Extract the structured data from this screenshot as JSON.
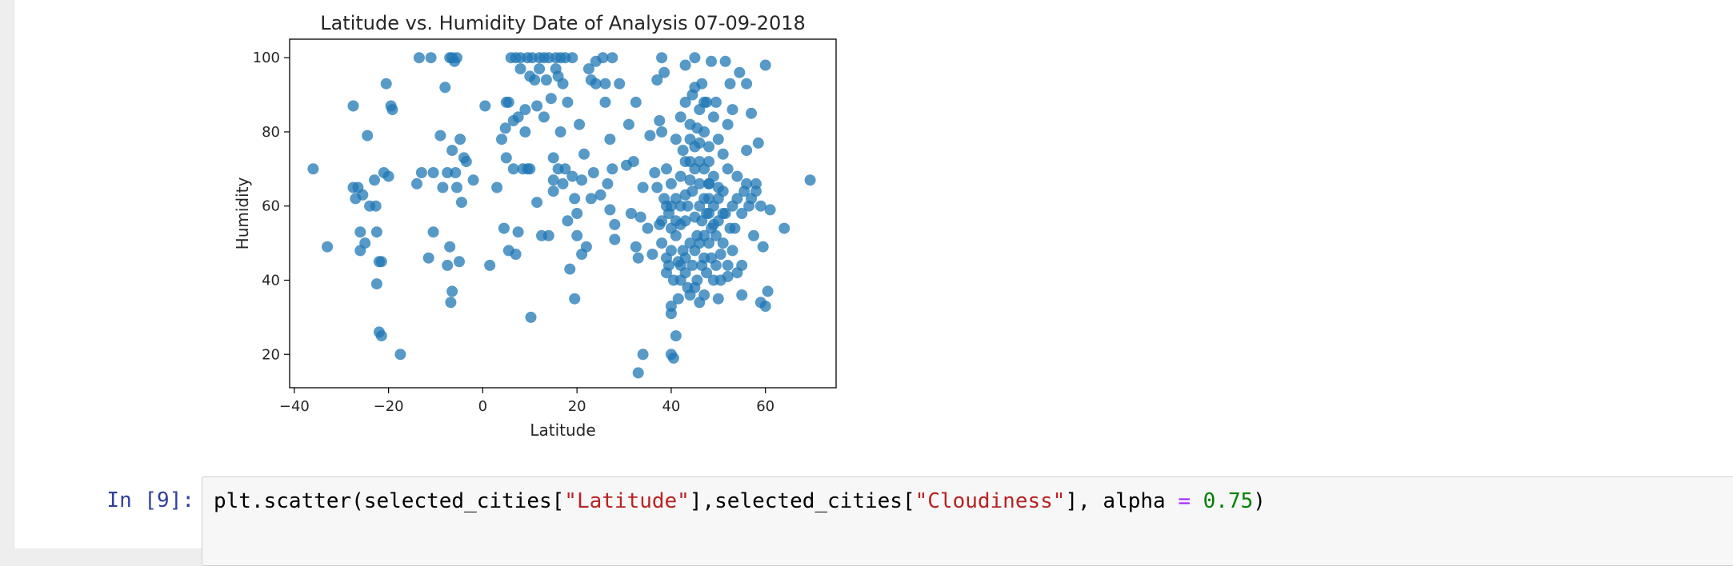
{
  "chart_data": {
    "type": "scatter",
    "title": "Latitude vs. Humidity Date of Analysis 07-09-2018",
    "xlabel": "Latitude",
    "ylabel": "Humidity",
    "xlim": [
      -41,
      75
    ],
    "ylim": [
      11,
      105
    ],
    "xticks": [
      -40,
      -20,
      0,
      20,
      40,
      60
    ],
    "yticks": [
      20,
      40,
      60,
      80,
      100
    ],
    "xtick_labels": [
      "−40",
      "−20",
      "0",
      "20",
      "40",
      "60"
    ],
    "ytick_labels": [
      "20",
      "40",
      "60",
      "80",
      "100"
    ],
    "grid": false,
    "marker_color": "#1f77b4",
    "alpha": 0.75,
    "points": [
      [
        -36,
        70
      ],
      [
        -33,
        49
      ],
      [
        -27.5,
        87
      ],
      [
        -27.5,
        65
      ],
      [
        -27,
        62
      ],
      [
        -26.5,
        65
      ],
      [
        -26,
        48
      ],
      [
        -26,
        53
      ],
      [
        -25.5,
        63
      ],
      [
        -25,
        50
      ],
      [
        -24.5,
        79
      ],
      [
        -24,
        60
      ],
      [
        -23,
        67
      ],
      [
        -22.7,
        60
      ],
      [
        -22.5,
        53
      ],
      [
        -22.5,
        39
      ],
      [
        -22,
        45
      ],
      [
        -22,
        26
      ],
      [
        -21.5,
        25
      ],
      [
        -21.5,
        45
      ],
      [
        -21,
        69
      ],
      [
        -20.5,
        93
      ],
      [
        -20,
        68
      ],
      [
        -19.5,
        87
      ],
      [
        -19.2,
        86
      ],
      [
        -17.5,
        20
      ],
      [
        -14,
        66
      ],
      [
        -13.5,
        100
      ],
      [
        -13,
        69
      ],
      [
        -11.5,
        46
      ],
      [
        -11,
        100
      ],
      [
        -10.5,
        53
      ],
      [
        -10.5,
        69
      ],
      [
        -9,
        79
      ],
      [
        -8.5,
        65
      ],
      [
        -8,
        92
      ],
      [
        -7.5,
        44
      ],
      [
        -7.5,
        69
      ],
      [
        -7,
        100
      ],
      [
        -7,
        49
      ],
      [
        -6.8,
        34
      ],
      [
        -6.5,
        100
      ],
      [
        -6.5,
        37
      ],
      [
        -6.5,
        75
      ],
      [
        -6,
        99
      ],
      [
        -5.8,
        69
      ],
      [
        -5.5,
        100
      ],
      [
        -5.5,
        65
      ],
      [
        -5,
        45
      ],
      [
        -4.8,
        78
      ],
      [
        -4.5,
        61
      ],
      [
        -4,
        73
      ],
      [
        -3.5,
        72
      ],
      [
        -2,
        67
      ],
      [
        0.5,
        87
      ],
      [
        1.5,
        44
      ],
      [
        3,
        65
      ],
      [
        4,
        78
      ],
      [
        4.5,
        54
      ],
      [
        4.8,
        81
      ],
      [
        5,
        73
      ],
      [
        5,
        88
      ],
      [
        5.5,
        48
      ],
      [
        5.5,
        88
      ],
      [
        6,
        100
      ],
      [
        6.5,
        83
      ],
      [
        6.5,
        70
      ],
      [
        7,
        100
      ],
      [
        7,
        47
      ],
      [
        7.5,
        84
      ],
      [
        7.5,
        53
      ],
      [
        8,
        97
      ],
      [
        8,
        100
      ],
      [
        8.5,
        70
      ],
      [
        9,
        80
      ],
      [
        9,
        86
      ],
      [
        9.5,
        100
      ],
      [
        9.5,
        70
      ],
      [
        10,
        95
      ],
      [
        10,
        70
      ],
      [
        10.2,
        30
      ],
      [
        10.5,
        100
      ],
      [
        11,
        94
      ],
      [
        11.5,
        61
      ],
      [
        11.5,
        87
      ],
      [
        12,
        100
      ],
      [
        12,
        97
      ],
      [
        12.5,
        52
      ],
      [
        13,
        100
      ],
      [
        13,
        84
      ],
      [
        13.5,
        94
      ],
      [
        14,
        52
      ],
      [
        14,
        100
      ],
      [
        14.5,
        89
      ],
      [
        15,
        73
      ],
      [
        15,
        67
      ],
      [
        15,
        64
      ],
      [
        15.5,
        97
      ],
      [
        15.5,
        100
      ],
      [
        16,
        95
      ],
      [
        16,
        70
      ],
      [
        16.5,
        100
      ],
      [
        16.5,
        80
      ],
      [
        17,
        93
      ],
      [
        17,
        66
      ],
      [
        17.5,
        100
      ],
      [
        17.5,
        70
      ],
      [
        18,
        88
      ],
      [
        18,
        56
      ],
      [
        18.5,
        43
      ],
      [
        19,
        100
      ],
      [
        19,
        68
      ],
      [
        19.5,
        62
      ],
      [
        19.5,
        35
      ],
      [
        20,
        52
      ],
      [
        20,
        58
      ],
      [
        20.5,
        82
      ],
      [
        21,
        67
      ],
      [
        21,
        47
      ],
      [
        21.5,
        74
      ],
      [
        22,
        49
      ],
      [
        22.5,
        97
      ],
      [
        23,
        94
      ],
      [
        23,
        62
      ],
      [
        23.5,
        69
      ],
      [
        24,
        99
      ],
      [
        24,
        93
      ],
      [
        25,
        63
      ],
      [
        25.5,
        100
      ],
      [
        26,
        93
      ],
      [
        26,
        88
      ],
      [
        26.5,
        66
      ],
      [
        27,
        78
      ],
      [
        27,
        59
      ],
      [
        27.5,
        100
      ],
      [
        27.5,
        70
      ],
      [
        28,
        55
      ],
      [
        28,
        51
      ],
      [
        29,
        93
      ],
      [
        30.5,
        71
      ],
      [
        31,
        82
      ],
      [
        31.5,
        58
      ],
      [
        32,
        72
      ],
      [
        32.5,
        88
      ],
      [
        32.5,
        49
      ],
      [
        33,
        46
      ],
      [
        33,
        15
      ],
      [
        33.5,
        57
      ],
      [
        34,
        20
      ],
      [
        34,
        65
      ],
      [
        35,
        54
      ],
      [
        35.5,
        79
      ],
      [
        36,
        47
      ],
      [
        36.5,
        69
      ],
      [
        37,
        94
      ],
      [
        37.5,
        83
      ],
      [
        38,
        100
      ],
      [
        38,
        80
      ],
      [
        38.5,
        96
      ],
      [
        39,
        46
      ],
      [
        39,
        60
      ],
      [
        39.5,
        44
      ],
      [
        40,
        33
      ],
      [
        40,
        31
      ],
      [
        40,
        20
      ],
      [
        40.5,
        19
      ],
      [
        41,
        25
      ],
      [
        41.5,
        35
      ],
      [
        42,
        55
      ],
      [
        42.5,
        75
      ],
      [
        43,
        98
      ],
      [
        43,
        63
      ],
      [
        43.5,
        38
      ],
      [
        44,
        67
      ],
      [
        44.5,
        90
      ],
      [
        44.5,
        44
      ],
      [
        45,
        100
      ],
      [
        45,
        57
      ],
      [
        45.5,
        81
      ],
      [
        46,
        77
      ],
      [
        46,
        34
      ],
      [
        46.5,
        93
      ],
      [
        47,
        62
      ],
      [
        47,
        46
      ],
      [
        47.5,
        88
      ],
      [
        48,
        72
      ],
      [
        48,
        50
      ],
      [
        48.5,
        99
      ],
      [
        49,
        55
      ],
      [
        49,
        40
      ],
      [
        49.5,
        88
      ],
      [
        50,
        65
      ],
      [
        50,
        35
      ],
      [
        50.5,
        47
      ],
      [
        51,
        58
      ],
      [
        51.5,
        99
      ],
      [
        52,
        82
      ],
      [
        52,
        41
      ],
      [
        52.5,
        93
      ],
      [
        53,
        86
      ],
      [
        53.5,
        54
      ],
      [
        54,
        68
      ],
      [
        54.5,
        96
      ],
      [
        55,
        36
      ],
      [
        55,
        44
      ],
      [
        55.5,
        64
      ],
      [
        56,
        75
      ],
      [
        56,
        93
      ],
      [
        56.5,
        60
      ],
      [
        57,
        85
      ],
      [
        57.5,
        52
      ],
      [
        58,
        66
      ],
      [
        58.5,
        77
      ],
      [
        59,
        34
      ],
      [
        59.5,
        49
      ],
      [
        60,
        33
      ],
      [
        60,
        98
      ],
      [
        60.5,
        37
      ],
      [
        61,
        59
      ],
      [
        64,
        54
      ],
      [
        69.5,
        67
      ],
      [
        37,
        65
      ],
      [
        37.5,
        55
      ],
      [
        38,
        50
      ],
      [
        38.5,
        62
      ],
      [
        39,
        70
      ],
      [
        39.5,
        58
      ],
      [
        40,
        66
      ],
      [
        40,
        48
      ],
      [
        40.5,
        40
      ],
      [
        41,
        52
      ],
      [
        41,
        62
      ],
      [
        41.5,
        45
      ],
      [
        42,
        40
      ],
      [
        42,
        68
      ],
      [
        42.5,
        48
      ],
      [
        43,
        56
      ],
      [
        43,
        42
      ],
      [
        43.5,
        60
      ],
      [
        44,
        50
      ],
      [
        44,
        72
      ],
      [
        44.5,
        64
      ],
      [
        45,
        48
      ],
      [
        45,
        70
      ],
      [
        45.5,
        52
      ],
      [
        45.5,
        40
      ],
      [
        46,
        60
      ],
      [
        46,
        66
      ],
      [
        46.5,
        56
      ],
      [
        46.5,
        44
      ],
      [
        47,
        70
      ],
      [
        47,
        52
      ],
      [
        47.5,
        58
      ],
      [
        47.5,
        42
      ],
      [
        48,
        62
      ],
      [
        48,
        66
      ],
      [
        48.5,
        46
      ],
      [
        48.5,
        54
      ],
      [
        49,
        60
      ],
      [
        49,
        68
      ],
      [
        49.5,
        44
      ],
      [
        49.5,
        52
      ],
      [
        50,
        56
      ],
      [
        50,
        62
      ],
      [
        50.5,
        40
      ],
      [
        51,
        50
      ],
      [
        51,
        64
      ],
      [
        51.5,
        58
      ],
      [
        52,
        44
      ],
      [
        52,
        70
      ],
      [
        52.5,
        54
      ],
      [
        53,
        60
      ],
      [
        53,
        48
      ],
      [
        54,
        62
      ],
      [
        54,
        42
      ],
      [
        55,
        58
      ],
      [
        56,
        66
      ],
      [
        57,
        62
      ],
      [
        58,
        64
      ],
      [
        59,
        60
      ],
      [
        41,
        78
      ],
      [
        42,
        84
      ],
      [
        43,
        88
      ],
      [
        44,
        82
      ],
      [
        45,
        76
      ],
      [
        46,
        86
      ],
      [
        47,
        80
      ],
      [
        48,
        76
      ],
      [
        49,
        84
      ],
      [
        50,
        78
      ],
      [
        51,
        74
      ],
      [
        45,
        92
      ],
      [
        46,
        72
      ],
      [
        47,
        88
      ],
      [
        48,
        66
      ],
      [
        44,
        78
      ],
      [
        43,
        72
      ],
      [
        42,
        60
      ],
      [
        40,
        60
      ],
      [
        39,
        42
      ],
      [
        38,
        56
      ],
      [
        41,
        56
      ],
      [
        43,
        46
      ],
      [
        45,
        38
      ],
      [
        47,
        36
      ],
      [
        46,
        50
      ],
      [
        48,
        58
      ],
      [
        44,
        36
      ],
      [
        42,
        44
      ],
      [
        40,
        54
      ]
    ]
  },
  "input_cell": {
    "prompt": "In [9]:",
    "code_parts": {
      "p1": "plt.scatter(selected_cities[",
      "s1": "\"Latitude\"",
      "p2": "],selected_cities[",
      "s2": "\"Cloudiness\"",
      "p3": "], alpha ",
      "op": "=",
      "p4": " ",
      "num": "0.75",
      "p5": ")"
    }
  }
}
